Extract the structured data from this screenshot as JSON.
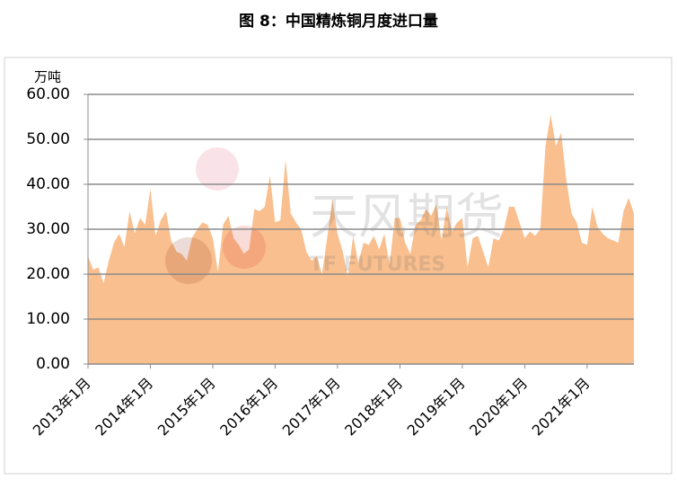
{
  "chart_data": {
    "type": "area",
    "title": "图 8：中国精炼铜月度进口量",
    "y_unit_label": "万吨",
    "watermark": [
      "天风期货",
      "TF FUTURES"
    ],
    "categories": [
      "2013年1月",
      null,
      null,
      null,
      null,
      null,
      null,
      null,
      null,
      null,
      null,
      null,
      "2014年1月",
      null,
      null,
      null,
      null,
      null,
      null,
      null,
      null,
      null,
      null,
      null,
      "2015年1月",
      null,
      null,
      null,
      null,
      null,
      null,
      null,
      null,
      null,
      null,
      null,
      "2016年1月",
      null,
      null,
      null,
      null,
      null,
      null,
      null,
      null,
      null,
      null,
      null,
      "2017年1月",
      null,
      null,
      null,
      null,
      null,
      null,
      null,
      null,
      null,
      null,
      null,
      "2018年1月",
      null,
      null,
      null,
      null,
      null,
      null,
      null,
      null,
      null,
      null,
      null,
      "2019年1月",
      null,
      null,
      null,
      null,
      null,
      null,
      null,
      null,
      null,
      null,
      null,
      "2020年1月",
      null,
      null,
      null,
      null,
      null,
      null,
      null,
      null,
      null,
      null,
      null,
      "2021年1月",
      null,
      null,
      null,
      null,
      null,
      null,
      null,
      null,
      null
    ],
    "values": [
      24,
      21,
      21.5,
      18,
      23,
      27,
      29,
      26,
      34,
      29,
      32.5,
      31,
      39,
      28.5,
      32,
      34,
      27.5,
      25,
      24.5,
      23,
      28,
      30,
      31.5,
      31,
      28,
      20.5,
      31,
      33,
      28,
      26.5,
      24.5,
      25.5,
      34.5,
      34,
      35,
      42,
      31.5,
      32,
      45.5,
      33.5,
      31.5,
      30,
      25,
      23,
      24,
      20,
      28,
      36.5,
      29,
      25,
      19.5,
      28.5,
      22.5,
      27,
      26.5,
      28.5,
      25.5,
      29,
      22,
      32.5,
      32.5,
      27,
      24.5,
      31,
      32,
      34.5,
      33,
      35.5,
      27.5,
      35,
      29.5,
      31.5,
      32.5,
      21.5,
      28,
      28.5,
      25,
      21.5,
      28,
      27.5,
      30,
      35,
      35,
      31.5,
      28,
      29.5,
      28.5,
      30,
      48.5,
      55.5,
      48.5,
      51.5,
      41,
      33.5,
      31.5,
      27,
      26.5,
      35,
      30.5,
      29,
      28,
      27.5,
      27,
      34,
      37,
      33.5
    ],
    "color": "#f9bf8e",
    "ylim": [
      0,
      60
    ],
    "yticks": [
      {
        "value": 0,
        "label": "0.00"
      },
      {
        "value": 10,
        "label": "10.00"
      },
      {
        "value": 20,
        "label": "20.00"
      },
      {
        "value": 30,
        "label": "30.00"
      },
      {
        "value": 40,
        "label": "40.00"
      },
      {
        "value": 50,
        "label": "50.00"
      },
      {
        "value": 60,
        "label": "60.00"
      }
    ],
    "grid": true
  }
}
